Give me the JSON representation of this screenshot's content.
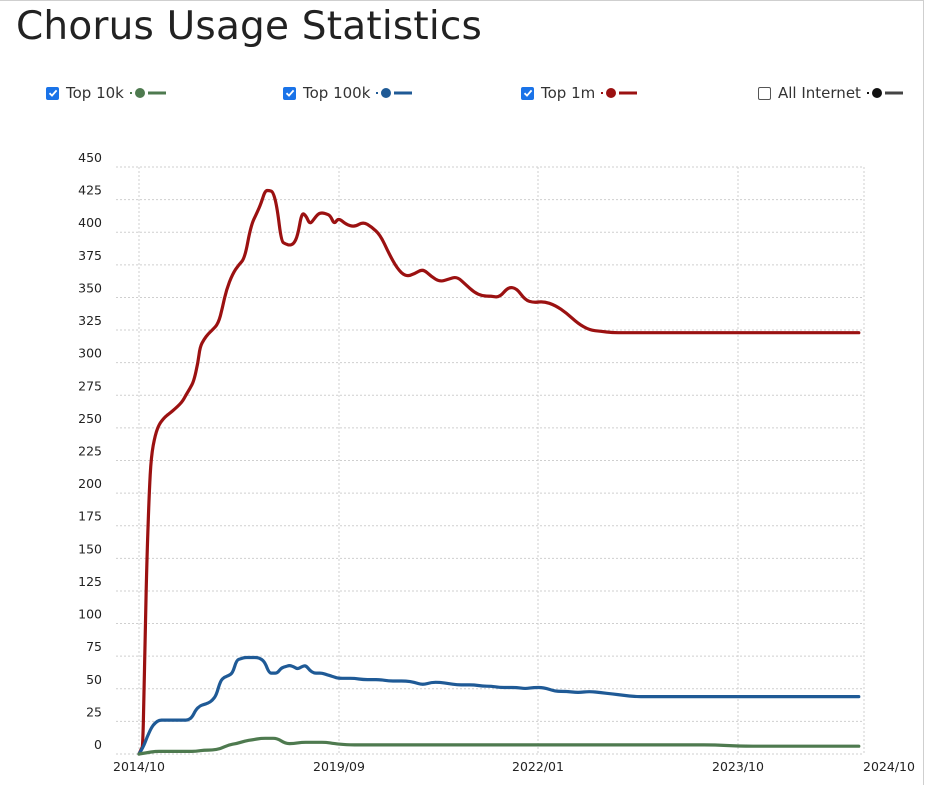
{
  "page": {
    "title": "Chorus Usage Statistics"
  },
  "legend": [
    {
      "label": "Top 10k",
      "checked": true,
      "color": "#4e7a4f"
    },
    {
      "label": "Top 100k",
      "checked": true,
      "color": "#1f5a96"
    },
    {
      "label": "Top 1m",
      "checked": true,
      "color": "#9b1111"
    },
    {
      "label": "All Internet",
      "checked": false,
      "color": "#111111"
    }
  ],
  "chart_data": {
    "type": "line",
    "title": "Chorus Usage Statistics",
    "xlabel": "",
    "ylabel": "",
    "xlim": [
      "2014-10",
      "2024-10"
    ],
    "ylim": [
      0,
      450
    ],
    "grid": true,
    "legend_position": "top",
    "y_ticks": [
      "450",
      "425",
      "400",
      "375",
      "350",
      "325",
      "300",
      "275",
      "250",
      "225",
      "200",
      "175",
      "150",
      "125",
      "100",
      "75",
      "50",
      "25",
      "0"
    ],
    "x_ticks": [
      "2014/10",
      "2019/09",
      "2022/01",
      "2023/10",
      "2024/10"
    ],
    "series": [
      {
        "name": "Top 1m",
        "color": "#9b1111",
        "x": [
          0,
          0.03,
          0.06,
          0.09,
          0.12,
          0.15,
          0.2,
          0.25,
          0.3,
          0.4,
          0.5,
          0.6,
          0.7,
          0.75,
          0.9,
          1.0,
          1.08,
          1.15,
          1.25,
          1.35,
          1.45,
          1.5,
          1.6,
          1.7,
          1.8,
          1.95,
          2.05,
          2.15,
          2.3,
          2.45,
          2.6,
          2.75,
          2.9,
          3.0,
          3.1,
          3.2,
          3.3,
          3.4,
          3.5,
          3.6,
          3.7,
          3.8,
          3.9,
          4.0,
          4.1,
          4.2,
          4.3,
          4.4,
          4.5,
          4.6,
          4.7,
          4.8,
          4.9,
          5.0,
          5.1,
          5.2,
          5.3,
          5.4,
          5.5,
          5.6,
          5.7,
          5.8,
          5.9,
          6.0,
          6.1,
          6.2,
          6.3,
          6.4,
          6.5,
          6.6,
          6.7,
          6.8,
          6.9,
          7.0,
          7.1,
          7.2,
          7.3,
          7.4,
          7.5,
          7.6,
          7.7,
          7.8,
          7.9,
          8.0,
          8.1,
          8.2,
          8.3,
          8.4,
          8.5,
          8.6,
          8.7,
          8.8,
          8.9,
          9.0,
          9.1,
          9.2,
          9.3,
          9.4,
          9.5,
          9.6,
          9.7,
          9.8,
          9.9,
          10.0
        ],
        "values": [
          0,
          2,
          4,
          6,
          40,
          90,
          155,
          200,
          228,
          245,
          253,
          257,
          260,
          261,
          265,
          268,
          271,
          275,
          280,
          286,
          300,
          312,
          318,
          322,
          325,
          330,
          342,
          356,
          368,
          375,
          380,
          405,
          415,
          422,
          432,
          432,
          431,
          418,
          393,
          391,
          390,
          391,
          397,
          415,
          413,
          406,
          410,
          414,
          415,
          414,
          413,
          406,
          411,
          406,
          404,
          408,
          404,
          398,
          384,
          372,
          366,
          368,
          372,
          366,
          362,
          364,
          366,
          360,
          354,
          351,
          351,
          350,
          358,
          357,
          348,
          346,
          347,
          344,
          338,
          330,
          325,
          324,
          323,
          323,
          323,
          323,
          323,
          323,
          323,
          323,
          323,
          323,
          323,
          323,
          323,
          323,
          323,
          323,
          323,
          323,
          323,
          323,
          323,
          323
        ]
      },
      {
        "name": "Top 100k",
        "color": "#1f5a96",
        "x": [
          0,
          0.1,
          0.2,
          0.3,
          0.4,
          0.5,
          0.6,
          0.7,
          0.8,
          0.9,
          1.0,
          1.1,
          1.2,
          1.3,
          1.4,
          1.5,
          1.6,
          1.7,
          1.8,
          1.9,
          2.0,
          2.1,
          2.2,
          2.3,
          2.4,
          2.5,
          2.6,
          2.7,
          2.8,
          2.9,
          3.0,
          3.1,
          3.2,
          3.3,
          3.4,
          3.5,
          3.6,
          3.7,
          3.8,
          3.9,
          4.0,
          4.1,
          4.2,
          4.3,
          4.4,
          4.5,
          4.6,
          4.7,
          4.8,
          4.9,
          5.0,
          5.1,
          5.2,
          5.3,
          5.4,
          5.5,
          5.6,
          5.7,
          5.8,
          5.9,
          6.0,
          6.1,
          6.2,
          6.3,
          6.4,
          6.5,
          6.6,
          6.7,
          6.8,
          6.9,
          7.0,
          7.1,
          7.2,
          7.3,
          7.4,
          7.5,
          7.6,
          7.7,
          7.8,
          7.9,
          8.0,
          8.1,
          8.2,
          8.3,
          8.4,
          8.5,
          8.6,
          8.7,
          8.8,
          8.9,
          9.0,
          9.1,
          9.2,
          9.3,
          9.4,
          9.5,
          9.6,
          9.7,
          9.8,
          9.9,
          10.0
        ],
        "values": [
          0,
          5,
          13,
          20,
          24,
          26,
          26,
          26,
          26,
          26,
          26,
          26,
          26,
          28,
          34,
          37,
          38,
          39,
          41,
          45,
          56,
          59,
          60,
          62,
          72,
          73,
          74,
          74,
          74,
          74,
          73,
          70,
          62,
          62,
          62,
          66,
          67,
          68,
          67,
          65,
          67,
          68,
          64,
          62,
          62,
          62,
          61,
          60,
          59,
          58,
          58,
          58,
          57,
          57,
          57,
          56,
          56,
          56,
          55,
          53,
          55,
          55,
          54,
          53,
          53,
          53,
          52,
          52,
          51,
          51,
          51,
          50,
          51,
          51,
          48,
          48,
          47,
          48,
          47,
          46,
          45,
          44,
          44,
          44,
          44,
          44,
          44,
          44,
          44,
          44,
          44,
          44,
          44,
          44,
          44,
          44,
          44,
          44,
          44,
          44,
          44
        ]
      },
      {
        "name": "Top 10k",
        "color": "#4e7a4f",
        "x": [
          0,
          0.2,
          0.4,
          0.6,
          0.8,
          1.0,
          1.2,
          1.4,
          1.6,
          1.8,
          2.0,
          2.2,
          2.4,
          2.6,
          2.8,
          3.0,
          3.2,
          3.4,
          3.6,
          3.8,
          4.0,
          4.2,
          4.4,
          4.6,
          4.8,
          5.0,
          5.2,
          5.4,
          5.6,
          5.8,
          6.0,
          6.2,
          6.4,
          6.6,
          6.8,
          7.0,
          7.2,
          7.4,
          7.6,
          7.8,
          8.0,
          8.2,
          8.4,
          8.6,
          8.8,
          9.0,
          9.2,
          9.4,
          9.6,
          9.8,
          10.0
        ],
        "values": [
          0,
          1,
          2,
          2,
          2,
          2,
          2,
          2,
          3,
          3,
          4,
          7,
          8,
          10,
          11,
          12,
          12,
          12,
          8,
          8,
          9,
          9,
          9,
          9,
          8,
          7,
          7,
          7,
          7,
          7,
          7,
          7,
          7,
          7,
          7,
          7,
          7,
          7,
          7,
          7,
          7,
          7,
          7,
          7,
          7,
          6,
          6,
          6,
          6,
          6,
          6
        ]
      }
    ]
  }
}
